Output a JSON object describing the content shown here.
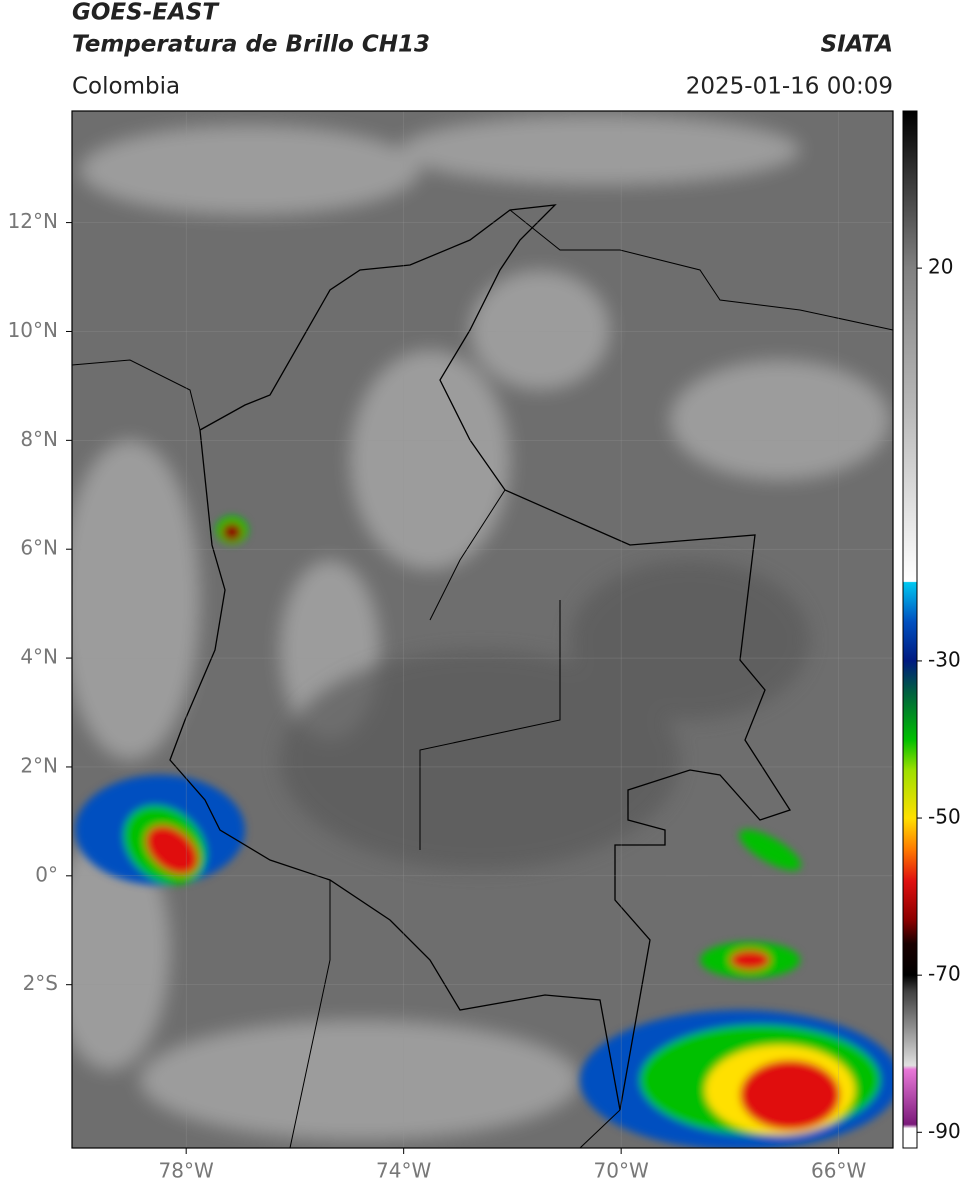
{
  "header": {
    "satellite": "GOES-EAST",
    "product": "Temperatura de Brillo CH13",
    "source": "SIATA",
    "region": "Colombia",
    "datetime": "2025-01-16 00:09"
  },
  "map": {
    "xlim": [
      -80.1,
      -65
    ],
    "ylim": [
      -5,
      14.05
    ],
    "grid": true,
    "xticks": [
      {
        "value": -78,
        "label": "78°W"
      },
      {
        "value": -74,
        "label": "74°W"
      },
      {
        "value": -70,
        "label": "70°W"
      },
      {
        "value": -66,
        "label": "66°W"
      }
    ],
    "yticks": [
      {
        "value": 12,
        "label": "12°N"
      },
      {
        "value": 10,
        "label": "10°N"
      },
      {
        "value": 8,
        "label": "8°N"
      },
      {
        "value": 6,
        "label": "6°N"
      },
      {
        "value": 4,
        "label": "4°N"
      },
      {
        "value": 2,
        "label": "2°N"
      },
      {
        "value": 0,
        "label": "0°"
      },
      {
        "value": -2,
        "label": "2°S"
      }
    ]
  },
  "colorbar": {
    "lim": [
      -92,
      40
    ],
    "ticks": [
      20,
      -30,
      -50,
      -70,
      -90
    ],
    "stops": [
      {
        "value": -92,
        "color": "#ffffff"
      },
      {
        "value": -89.5,
        "color": "#ffffff"
      },
      {
        "value": -89,
        "color": "#7a1a7a"
      },
      {
        "value": -82,
        "color": "#e878d8"
      },
      {
        "value": -81.5,
        "color": "#e0e0e0"
      },
      {
        "value": -72,
        "color": "#404040"
      },
      {
        "value": -70,
        "color": "#000000"
      },
      {
        "value": -66,
        "color": "#1a0000"
      },
      {
        "value": -63,
        "color": "#8b0000"
      },
      {
        "value": -58,
        "color": "#e01010"
      },
      {
        "value": -54,
        "color": "#ff7a00"
      },
      {
        "value": -50,
        "color": "#ffe000"
      },
      {
        "value": -44,
        "color": "#a0e000"
      },
      {
        "value": -40,
        "color": "#00c000"
      },
      {
        "value": -34,
        "color": "#006040"
      },
      {
        "value": -30,
        "color": "#001a80"
      },
      {
        "value": -25,
        "color": "#0050c0"
      },
      {
        "value": -20,
        "color": "#00c8f0"
      },
      {
        "value": -19.9,
        "color": "#ffffff"
      },
      {
        "value": 20,
        "color": "#808080"
      },
      {
        "value": 40,
        "color": "#000000"
      }
    ]
  }
}
